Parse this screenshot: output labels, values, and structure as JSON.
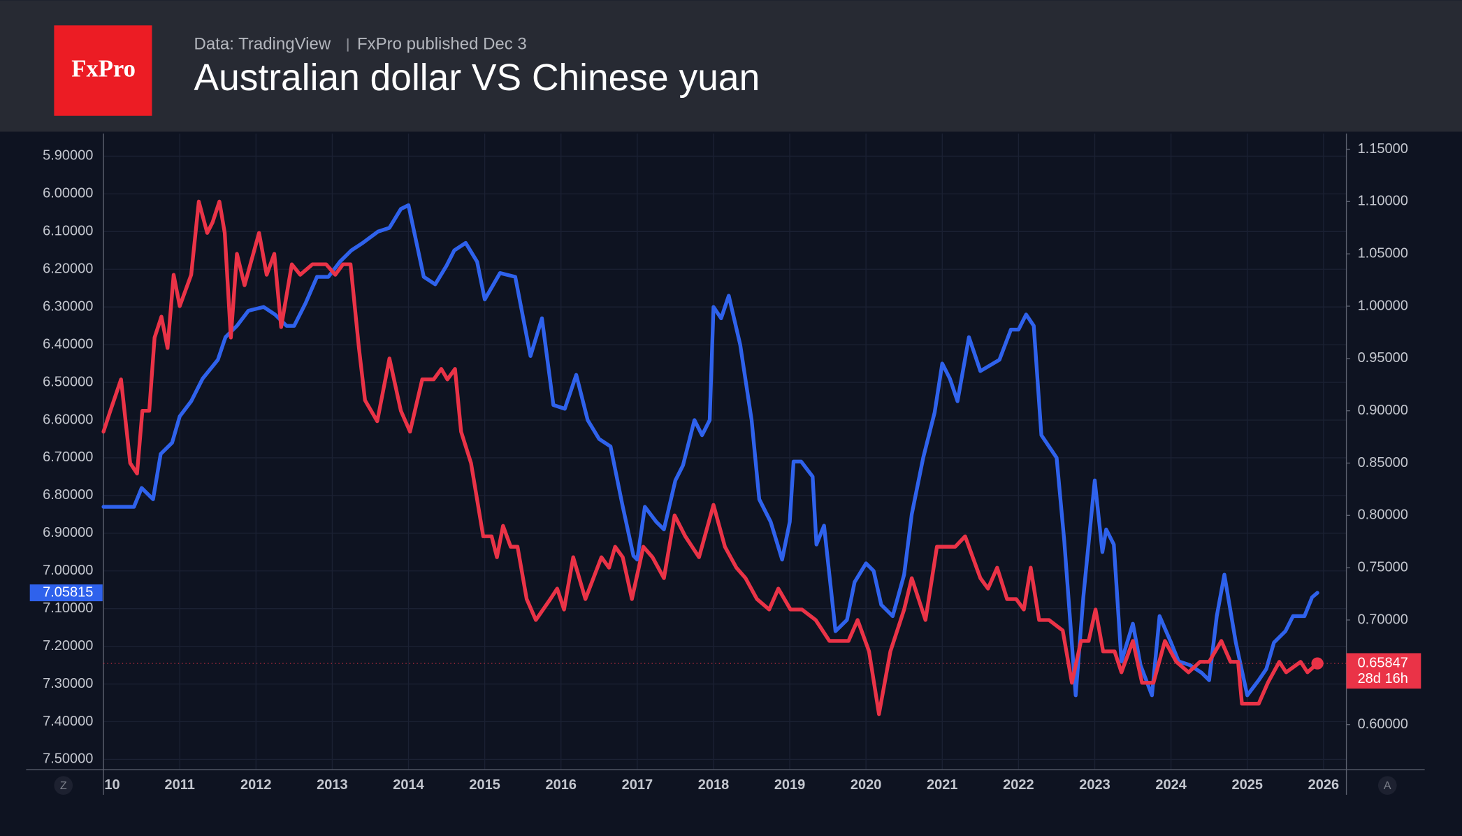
{
  "header": {
    "logo": "FxPro",
    "source": "Data: TradingView",
    "publisher": "FxPro published Dec 3"
  },
  "controls": {
    "left": "Z",
    "right": "A"
  },
  "chart_data": {
    "type": "line",
    "title": "Australian dollar VS Chinese yuan",
    "xlim": [
      2010,
      2026.3
    ],
    "xticks": [
      {
        "value": 2010,
        "label": "10"
      },
      2011,
      2012,
      2013,
      2014,
      2015,
      2016,
      2017,
      2018,
      2019,
      2020,
      2021,
      2022,
      2023,
      2024,
      2025,
      2026
    ],
    "ylim": [
      7.527,
      5.84
    ],
    "yticks": [
      {
        "value": 5.9,
        "label": "5.90000"
      },
      {
        "value": 6.0,
        "label": "6.00000"
      },
      {
        "value": 6.1,
        "label": "6.10000"
      },
      {
        "value": 6.2,
        "label": "6.20000"
      },
      {
        "value": 6.3,
        "label": "6.30000"
      },
      {
        "value": 6.4,
        "label": "6.40000"
      },
      {
        "value": 6.5,
        "label": "6.50000"
      },
      {
        "value": 6.6,
        "label": "6.60000"
      },
      {
        "value": 6.7,
        "label": "6.70000"
      },
      {
        "value": 6.8,
        "label": "6.80000"
      },
      {
        "value": 6.9,
        "label": "6.90000"
      },
      {
        "value": 7.0,
        "label": "7.00000"
      },
      {
        "value": 7.1,
        "label": "7.10000"
      },
      {
        "value": 7.2,
        "label": "7.20000"
      },
      {
        "value": 7.3,
        "label": "7.30000"
      },
      {
        "value": 7.4,
        "label": "7.40000"
      },
      {
        "value": 7.5,
        "label": "7.50000"
      }
    ],
    "y2lim": [
      0.557,
      1.165
    ],
    "y2ticks": [
      {
        "value": 0.6,
        "label": "0.60000"
      },
      {
        "value": 0.65,
        "label": "0.65000"
      },
      {
        "value": 0.7,
        "label": "0.70000"
      },
      {
        "value": 0.75,
        "label": "0.75000"
      },
      {
        "value": 0.8,
        "label": "0.80000"
      },
      {
        "value": 0.85,
        "label": "0.85000"
      },
      {
        "value": 0.9,
        "label": "0.90000"
      },
      {
        "value": 0.95,
        "label": "0.95000"
      },
      {
        "value": 1.0,
        "label": "1.00000"
      },
      {
        "value": 1.05,
        "label": "1.05000"
      },
      {
        "value": 1.1,
        "label": "1.10000"
      },
      {
        "value": 1.15,
        "label": "1.15000"
      }
    ],
    "grid": true,
    "countdown": "28d 16h",
    "series": [
      {
        "color": "#2f62ec",
        "axis": "y",
        "x": [
          2010,
          2010.25,
          2010.4,
          2010.5,
          2010.65,
          2010.75,
          2010.9,
          2011,
          2011.15,
          2011.3,
          2011.5,
          2011.6,
          2011.75,
          2011.9,
          2012.1,
          2012.25,
          2012.4,
          2012.5,
          2012.65,
          2012.8,
          2012.95,
          2013.1,
          2013.25,
          2013.4,
          2013.6,
          2013.75,
          2013.9,
          2014,
          2014.2,
          2014.35,
          2014.5,
          2014.6,
          2014.75,
          2014.9,
          2015,
          2015.2,
          2015.4,
          2015.6,
          2015.75,
          2015.9,
          2016.05,
          2016.2,
          2016.35,
          2016.5,
          2016.65,
          2016.8,
          2016.95,
          2017,
          2017.1,
          2017.25,
          2017.35,
          2017.5,
          2017.6,
          2017.75,
          2017.85,
          2017.95,
          2018,
          2018.1,
          2018.2,
          2018.35,
          2018.5,
          2018.6,
          2018.75,
          2018.9,
          2019,
          2019.05,
          2019.15,
          2019.3,
          2019.35,
          2019.45,
          2019.6,
          2019.75,
          2019.85,
          2020,
          2020.1,
          2020.2,
          2020.35,
          2020.5,
          2020.6,
          2020.75,
          2020.9,
          2021,
          2021.1,
          2021.2,
          2021.35,
          2021.5,
          2021.75,
          2021.9,
          2022,
          2022.1,
          2022.2,
          2022.3,
          2022.4,
          2022.5,
          2022.6,
          2022.75,
          2022.85,
          2023,
          2023.1,
          2023.15,
          2023.25,
          2023.35,
          2023.5,
          2023.6,
          2023.75,
          2023.85,
          2024,
          2024.1,
          2024.25,
          2024.4,
          2024.5,
          2024.6,
          2024.7,
          2024.85,
          2025,
          2025.15,
          2025.25,
          2025.35,
          2025.5,
          2025.6,
          2025.75,
          2025.85,
          2025.92
        ],
        "values": [
          6.83,
          6.83,
          6.83,
          6.78,
          6.81,
          6.69,
          6.66,
          6.59,
          6.55,
          6.49,
          6.44,
          6.38,
          6.35,
          6.31,
          6.3,
          6.32,
          6.35,
          6.35,
          6.29,
          6.22,
          6.22,
          6.18,
          6.15,
          6.13,
          6.1,
          6.09,
          6.04,
          6.03,
          6.22,
          6.24,
          6.19,
          6.15,
          6.13,
          6.18,
          6.28,
          6.21,
          6.22,
          6.43,
          6.33,
          6.56,
          6.57,
          6.48,
          6.6,
          6.65,
          6.67,
          6.82,
          6.96,
          6.97,
          6.83,
          6.87,
          6.89,
          6.76,
          6.72,
          6.6,
          6.64,
          6.6,
          6.3,
          6.33,
          6.27,
          6.4,
          6.6,
          6.81,
          6.87,
          6.97,
          6.87,
          6.71,
          6.71,
          6.75,
          6.93,
          6.88,
          7.16,
          7.13,
          7.03,
          6.98,
          7.0,
          7.09,
          7.12,
          7.01,
          6.85,
          6.7,
          6.58,
          6.45,
          6.49,
          6.55,
          6.38,
          6.47,
          6.44,
          6.36,
          6.36,
          6.32,
          6.35,
          6.64,
          6.67,
          6.7,
          6.92,
          7.33,
          7.07,
          6.76,
          6.95,
          6.89,
          6.93,
          7.24,
          7.14,
          7.25,
          7.33,
          7.12,
          7.19,
          7.24,
          7.25,
          7.27,
          7.29,
          7.12,
          7.01,
          7.19,
          7.33,
          7.29,
          7.26,
          7.19,
          7.16,
          7.12,
          7.12,
          7.07,
          7.05815
        ]
      },
      {
        "color": "#ea3347",
        "axis": "y2",
        "x": [
          2010,
          2010.09,
          2010.23,
          2010.35,
          2010.44,
          2010.51,
          2010.6,
          2010.67,
          2010.76,
          2010.84,
          2010.92,
          2011,
          2011.15,
          2011.25,
          2011.36,
          2011.43,
          2011.52,
          2011.59,
          2011.67,
          2011.75,
          2011.85,
          2012.04,
          2012.14,
          2012.24,
          2012.33,
          2012.47,
          2012.58,
          2012.74,
          2012.92,
          2013.04,
          2013.14,
          2013.24,
          2013.35,
          2013.43,
          2013.59,
          2013.75,
          2013.9,
          2014.02,
          2014.18,
          2014.33,
          2014.43,
          2014.51,
          2014.61,
          2014.69,
          2014.82,
          2014.98,
          2015.09,
          2015.16,
          2015.24,
          2015.34,
          2015.43,
          2015.55,
          2015.67,
          2015.86,
          2015.95,
          2016.04,
          2016.16,
          2016.32,
          2016.53,
          2016.63,
          2016.71,
          2016.81,
          2016.93,
          2017.08,
          2017.2,
          2017.35,
          2017.49,
          2017.63,
          2017.81,
          2018,
          2018.15,
          2018.3,
          2018.42,
          2018.57,
          2018.73,
          2018.85,
          2019.01,
          2019.16,
          2019.34,
          2019.52,
          2019.65,
          2019.77,
          2019.89,
          2020.04,
          2020.17,
          2020.32,
          2020.5,
          2020.6,
          2020.78,
          2020.93,
          2021.09,
          2021.17,
          2021.3,
          2021.5,
          2021.6,
          2021.72,
          2021.85,
          2021.97,
          2022.07,
          2022.16,
          2022.27,
          2022.4,
          2022.58,
          2022.7,
          2022.82,
          2022.92,
          2023.01,
          2023.11,
          2023.26,
          2023.35,
          2023.5,
          2023.62,
          2023.77,
          2023.92,
          2024.07,
          2024.23,
          2024.38,
          2024.5,
          2024.66,
          2024.78,
          2024.88,
          2024.93,
          2025.15,
          2025.27,
          2025.42,
          2025.51,
          2025.7,
          2025.79,
          2025.92
        ],
        "values": [
          0.88,
          0.9,
          0.93,
          0.85,
          0.84,
          0.9,
          0.9,
          0.97,
          0.99,
          0.96,
          1.03,
          1.0,
          1.03,
          1.1,
          1.07,
          1.08,
          1.1,
          1.07,
          0.97,
          1.05,
          1.02,
          1.07,
          1.03,
          1.05,
          0.98,
          1.04,
          1.03,
          1.04,
          1.04,
          1.03,
          1.04,
          1.04,
          0.96,
          0.91,
          0.89,
          0.95,
          0.9,
          0.88,
          0.93,
          0.93,
          0.94,
          0.93,
          0.94,
          0.88,
          0.85,
          0.78,
          0.78,
          0.76,
          0.79,
          0.77,
          0.77,
          0.72,
          0.7,
          0.72,
          0.73,
          0.71,
          0.76,
          0.72,
          0.76,
          0.75,
          0.77,
          0.76,
          0.72,
          0.77,
          0.76,
          0.74,
          0.8,
          0.78,
          0.76,
          0.81,
          0.77,
          0.75,
          0.74,
          0.72,
          0.71,
          0.73,
          0.71,
          0.71,
          0.7,
          0.68,
          0.68,
          0.68,
          0.7,
          0.67,
          0.61,
          0.67,
          0.71,
          0.74,
          0.7,
          0.77,
          0.77,
          0.77,
          0.78,
          0.74,
          0.73,
          0.75,
          0.72,
          0.72,
          0.71,
          0.75,
          0.7,
          0.7,
          0.69,
          0.64,
          0.68,
          0.68,
          0.71,
          0.67,
          0.67,
          0.65,
          0.68,
          0.64,
          0.64,
          0.68,
          0.66,
          0.65,
          0.66,
          0.66,
          0.68,
          0.66,
          0.66,
          0.62,
          0.62,
          0.64,
          0.66,
          0.65,
          0.66,
          0.65,
          0.65847
        ]
      }
    ]
  }
}
